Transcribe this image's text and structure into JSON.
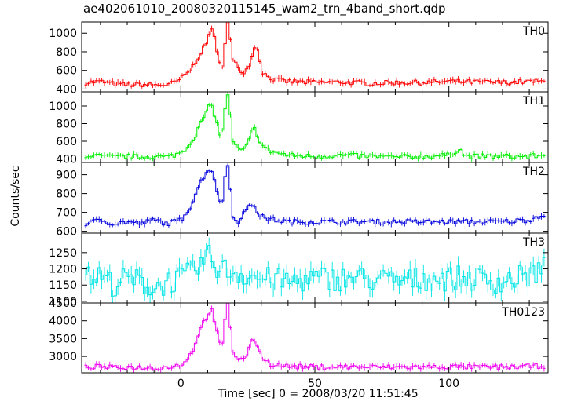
{
  "title": "ae402061010_20080320115145_wam2_trn_4band_short.qdp",
  "ylabel": "Counts/sec",
  "xlabel": "Time [sec] 0 = 2008/03/20 11:51:45",
  "chart_data": [
    {
      "type": "line",
      "name": "TH0",
      "color": "#ff0000",
      "xlim": [
        -37,
        137
      ],
      "ylim": [
        370,
        1120
      ],
      "yticks": [
        400,
        600,
        800,
        1000
      ],
      "xticks": [
        0,
        50,
        100
      ],
      "points": [
        [
          -35,
          470
        ],
        [
          -30,
          480
        ],
        [
          -25,
          455
        ],
        [
          -20,
          445
        ],
        [
          -15,
          450
        ],
        [
          -10,
          440
        ],
        [
          -5,
          450
        ],
        [
          -2,
          470
        ],
        [
          0,
          510
        ],
        [
          2,
          560
        ],
        [
          4,
          620
        ],
        [
          6,
          720
        ],
        [
          8,
          820
        ],
        [
          10,
          900
        ],
        [
          11,
          1080
        ],
        [
          12,
          1050
        ],
        [
          13,
          840
        ],
        [
          14,
          720
        ],
        [
          15,
          620
        ],
        [
          16,
          700
        ],
        [
          17,
          1120
        ],
        [
          18,
          1120
        ],
        [
          19,
          720
        ],
        [
          21,
          650
        ],
        [
          23,
          580
        ],
        [
          25,
          620
        ],
        [
          27,
          820
        ],
        [
          28,
          860
        ],
        [
          29,
          820
        ],
        [
          30,
          600
        ],
        [
          32,
          540
        ],
        [
          35,
          500
        ],
        [
          40,
          480
        ],
        [
          50,
          470
        ],
        [
          60,
          475
        ],
        [
          70,
          460
        ],
        [
          80,
          470
        ],
        [
          90,
          470
        ],
        [
          100,
          480
        ],
        [
          110,
          475
        ],
        [
          120,
          470
        ],
        [
          130,
          480
        ],
        [
          135,
          480
        ]
      ]
    },
    {
      "type": "line",
      "name": "TH1",
      "color": "#00ee00",
      "xlim": [
        -37,
        137
      ],
      "ylim": [
        360,
        1160
      ],
      "yticks": [
        400,
        600,
        800,
        1000
      ],
      "xticks": [
        0,
        50,
        100
      ],
      "points": [
        [
          -35,
          440
        ],
        [
          -30,
          430
        ],
        [
          -25,
          420
        ],
        [
          -20,
          430
        ],
        [
          -15,
          420
        ],
        [
          -10,
          430
        ],
        [
          -5,
          420
        ],
        [
          0,
          470
        ],
        [
          2,
          520
        ],
        [
          4,
          600
        ],
        [
          6,
          700
        ],
        [
          8,
          850
        ],
        [
          10,
          950
        ],
        [
          11,
          1020
        ],
        [
          12,
          980
        ],
        [
          13,
          840
        ],
        [
          14,
          750
        ],
        [
          15,
          620
        ],
        [
          16,
          800
        ],
        [
          17,
          1140
        ],
        [
          18,
          1140
        ],
        [
          19,
          620
        ],
        [
          21,
          520
        ],
        [
          23,
          490
        ],
        [
          25,
          560
        ],
        [
          27,
          760
        ],
        [
          28,
          720
        ],
        [
          30,
          560
        ],
        [
          33,
          490
        ],
        [
          40,
          440
        ],
        [
          50,
          430
        ],
        [
          60,
          440
        ],
        [
          70,
          430
        ],
        [
          80,
          420
        ],
        [
          90,
          430
        ],
        [
          100,
          440
        ],
        [
          104,
          520
        ],
        [
          106,
          430
        ],
        [
          110,
          430
        ],
        [
          120,
          430
        ],
        [
          130,
          430
        ],
        [
          135,
          440
        ]
      ]
    },
    {
      "type": "line",
      "name": "TH2",
      "color": "#0000dd",
      "xlim": [
        -37,
        137
      ],
      "ylim": [
        590,
        965
      ],
      "yticks": [
        600,
        700,
        800,
        900
      ],
      "xticks": [
        0,
        50,
        100
      ],
      "points": [
        [
          -35,
          640
        ],
        [
          -30,
          660
        ],
        [
          -25,
          640
        ],
        [
          -20,
          650
        ],
        [
          -15,
          640
        ],
        [
          -10,
          660
        ],
        [
          -5,
          640
        ],
        [
          0,
          660
        ],
        [
          2,
          700
        ],
        [
          4,
          740
        ],
        [
          6,
          820
        ],
        [
          8,
          880
        ],
        [
          10,
          920
        ],
        [
          11,
          940
        ],
        [
          12,
          900
        ],
        [
          13,
          860
        ],
        [
          14,
          780
        ],
        [
          15,
          720
        ],
        [
          16,
          820
        ],
        [
          17,
          950
        ],
        [
          18,
          950
        ],
        [
          19,
          700
        ],
        [
          21,
          640
        ],
        [
          23,
          690
        ],
        [
          25,
          720
        ],
        [
          27,
          750
        ],
        [
          29,
          690
        ],
        [
          31,
          670
        ],
        [
          35,
          660
        ],
        [
          40,
          650
        ],
        [
          50,
          650
        ],
        [
          60,
          650
        ],
        [
          70,
          650
        ],
        [
          80,
          650
        ],
        [
          90,
          650
        ],
        [
          100,
          650
        ],
        [
          110,
          650
        ],
        [
          120,
          650
        ],
        [
          130,
          660
        ],
        [
          135,
          690
        ]
      ]
    },
    {
      "type": "line",
      "name": "TH3",
      "color": "#00e5e5",
      "xlim": [
        -37,
        137
      ],
      "ylim": [
        1095,
        1310
      ],
      "yticks": [
        1100,
        1150,
        1200,
        1250
      ],
      "xticks": [
        0,
        50,
        100
      ],
      "points": [
        [
          -35,
          1170
        ],
        [
          -30,
          1180
        ],
        [
          -25,
          1150
        ],
        [
          -20,
          1170
        ],
        [
          -15,
          1160
        ],
        [
          -10,
          1140
        ],
        [
          -5,
          1160
        ],
        [
          0,
          1170
        ],
        [
          5,
          1190
        ],
        [
          10,
          1240
        ],
        [
          12,
          1220
        ],
        [
          15,
          1200
        ],
        [
          20,
          1190
        ],
        [
          25,
          1180
        ],
        [
          30,
          1170
        ],
        [
          40,
          1160
        ],
        [
          50,
          1170
        ],
        [
          60,
          1170
        ],
        [
          70,
          1170
        ],
        [
          80,
          1160
        ],
        [
          90,
          1170
        ],
        [
          100,
          1170
        ],
        [
          110,
          1170
        ],
        [
          120,
          1160
        ],
        [
          130,
          1180
        ],
        [
          135,
          1200
        ]
      ]
    },
    {
      "type": "line",
      "name": "TH0123",
      "color": "#ee00ee",
      "xlim": [
        -37,
        137
      ],
      "ylim": [
        2540,
        4500
      ],
      "yticks": [
        3000,
        3500,
        4000,
        4500
      ],
      "xticks": [
        0,
        50,
        100
      ],
      "points": [
        [
          -35,
          2700
        ],
        [
          -30,
          2720
        ],
        [
          -25,
          2680
        ],
        [
          -20,
          2700
        ],
        [
          -15,
          2690
        ],
        [
          -10,
          2680
        ],
        [
          -5,
          2700
        ],
        [
          0,
          2760
        ],
        [
          2,
          2900
        ],
        [
          4,
          3100
        ],
        [
          6,
          3500
        ],
        [
          8,
          3900
        ],
        [
          10,
          4150
        ],
        [
          11,
          4320
        ],
        [
          12,
          4250
        ],
        [
          13,
          3800
        ],
        [
          14,
          3500
        ],
        [
          15,
          3200
        ],
        [
          16,
          3500
        ],
        [
          17,
          4480
        ],
        [
          18,
          4480
        ],
        [
          19,
          3200
        ],
        [
          21,
          2950
        ],
        [
          23,
          2900
        ],
        [
          25,
          3100
        ],
        [
          27,
          3500
        ],
        [
          28,
          3450
        ],
        [
          30,
          3000
        ],
        [
          33,
          2800
        ],
        [
          40,
          2720
        ],
        [
          50,
          2700
        ],
        [
          60,
          2710
        ],
        [
          70,
          2700
        ],
        [
          80,
          2700
        ],
        [
          90,
          2700
        ],
        [
          100,
          2710
        ],
        [
          110,
          2700
        ],
        [
          120,
          2700
        ],
        [
          130,
          2720
        ],
        [
          135,
          2730
        ]
      ]
    }
  ]
}
